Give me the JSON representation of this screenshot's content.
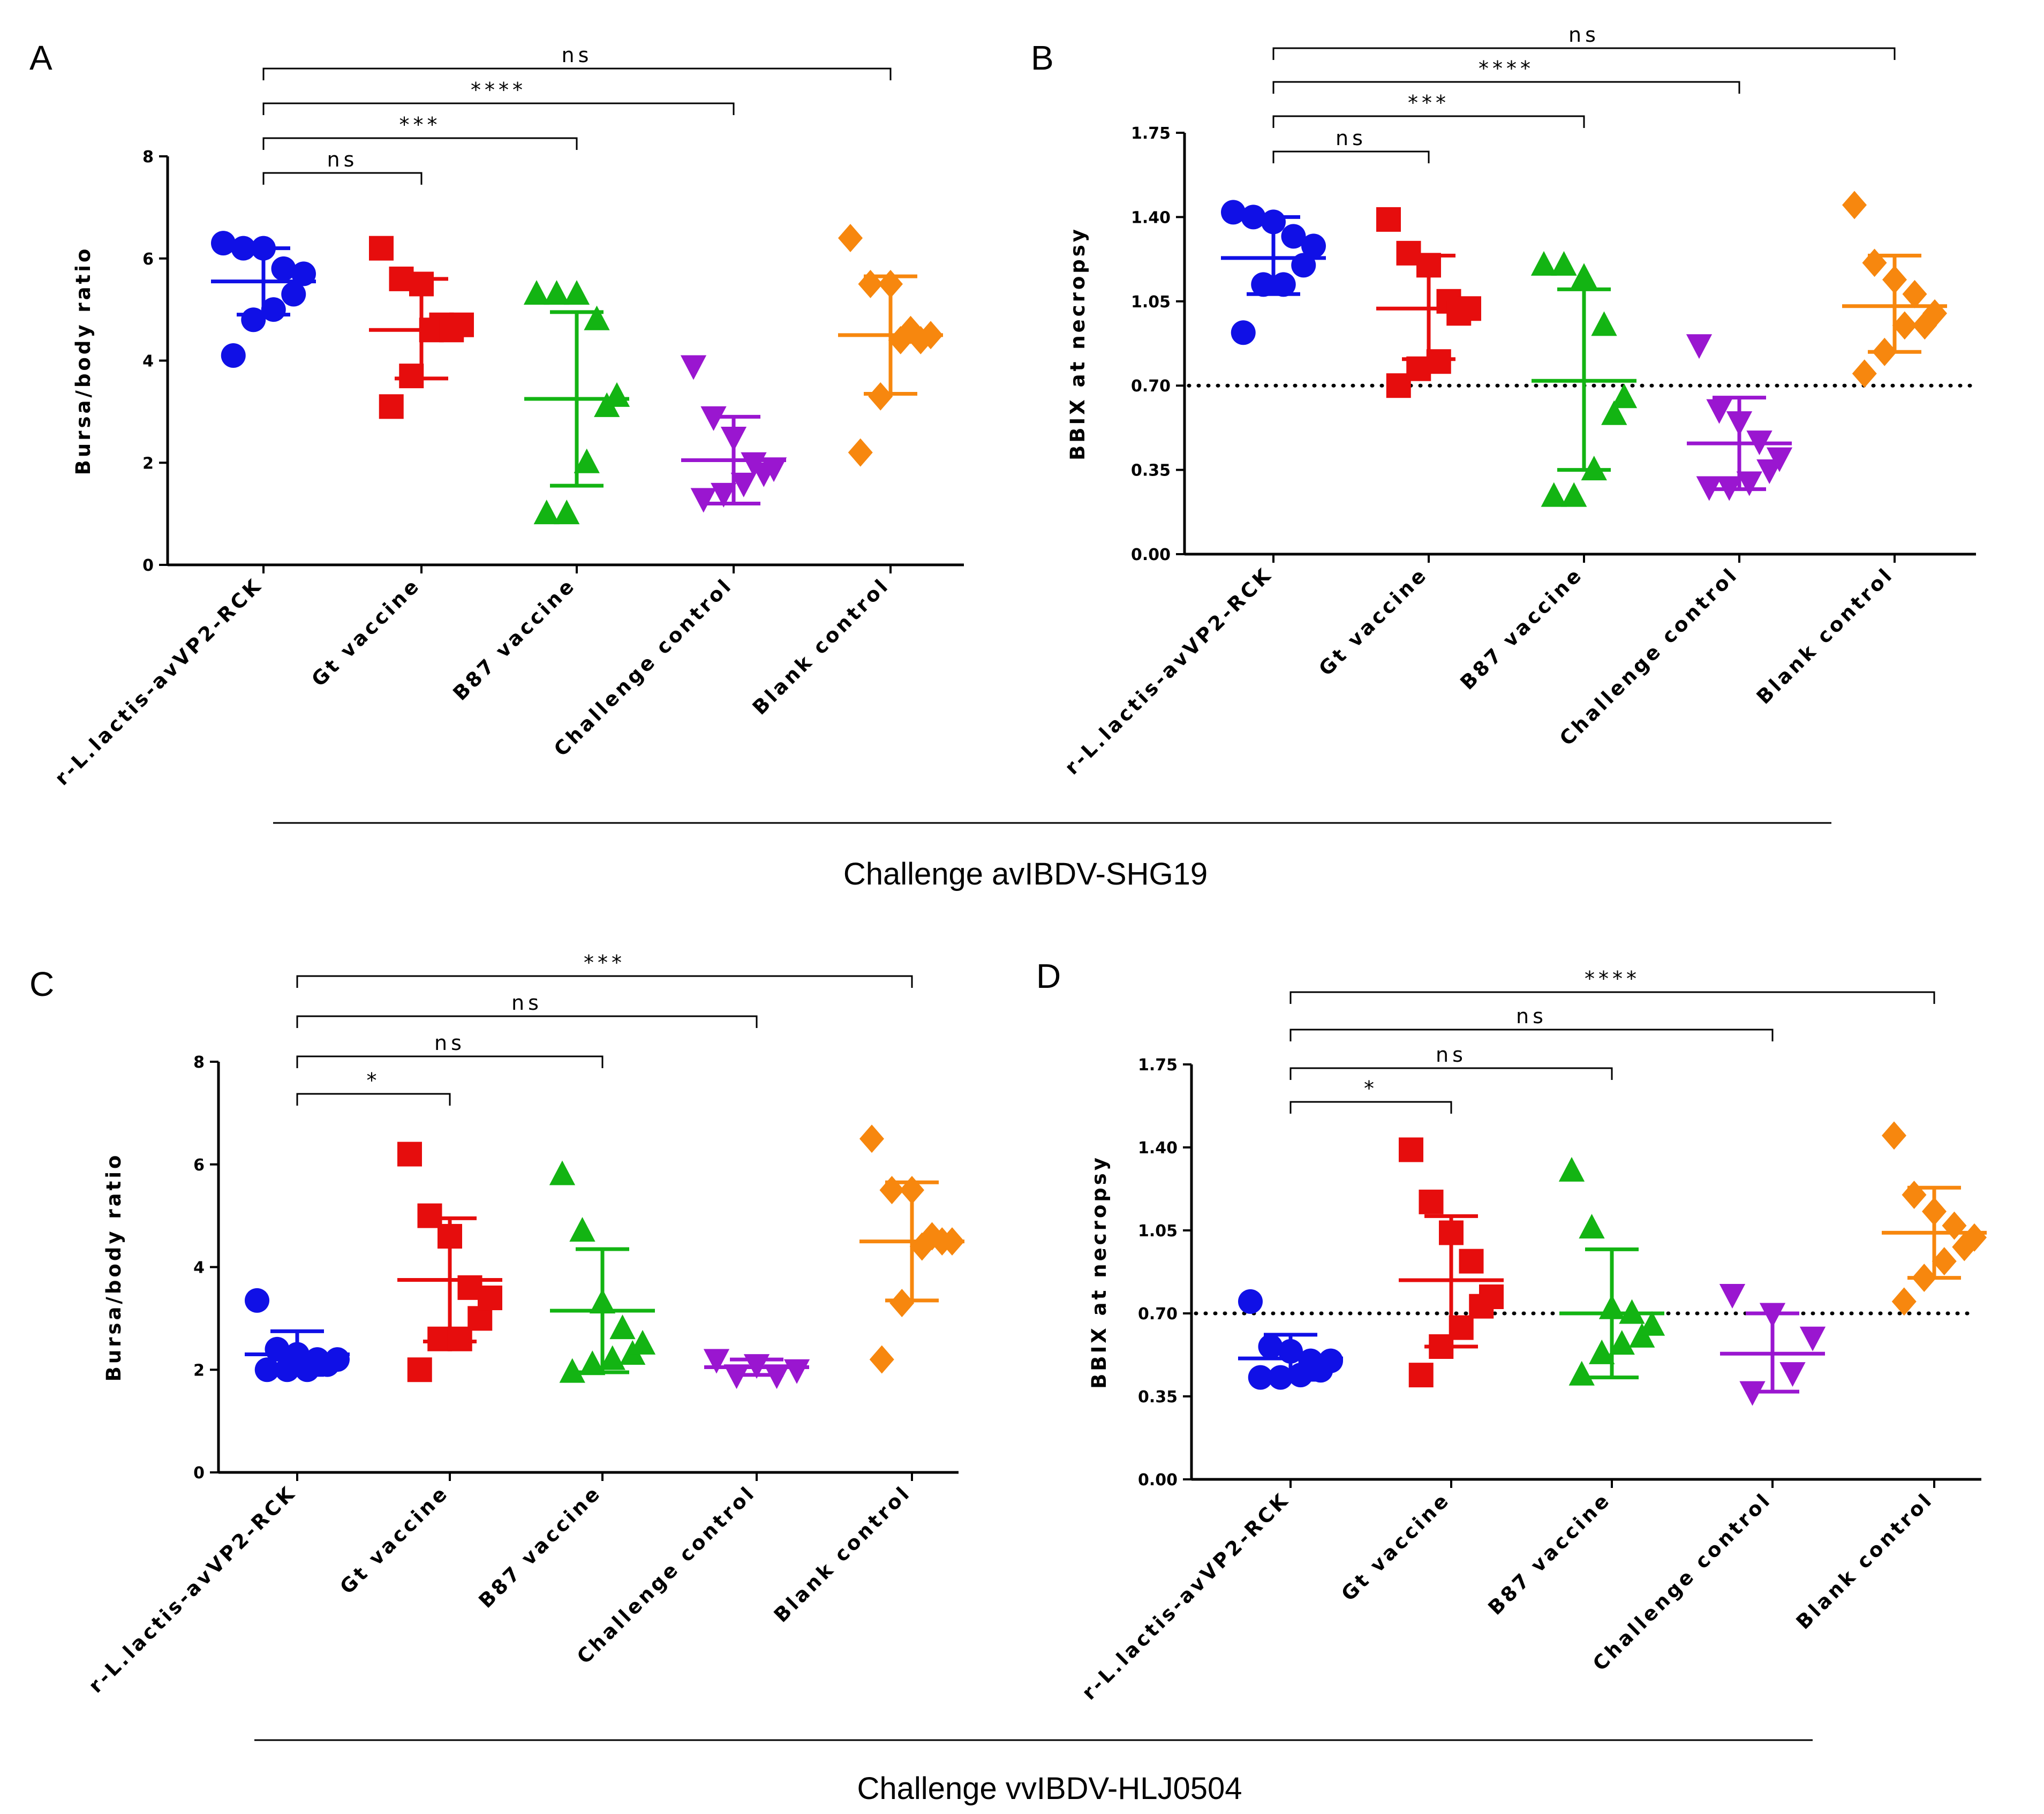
{
  "figure": {
    "challenge_labels": [
      "Challenge avIBDV-SHG19",
      "Challenge vvIBDV-HLJ0504"
    ]
  },
  "chart_data": [
    {
      "panel": "A",
      "type": "scatter",
      "ylabel": "Bursa/body ratio",
      "ylim": [
        0,
        8
      ],
      "yticks": [
        "0",
        "2",
        "4",
        "6",
        "8"
      ],
      "categories": [
        "r-L.lactis-avVP2-RCK",
        "Gt vaccine",
        "B87 vaccine",
        "Challenge control",
        "Blank control"
      ],
      "reference_line": null,
      "groups": [
        {
          "name": "r-L.lactis-avVP2-RCK",
          "color": "#1010e6",
          "marker": "circle",
          "mean": 5.55,
          "sd_low": 4.9,
          "sd_high": 6.2,
          "points": [
            6.3,
            6.2,
            6.2,
            5.8,
            5.7,
            5.3,
            5.0,
            4.8,
            4.1
          ]
        },
        {
          "name": "Gt vaccine",
          "color": "#e60d0d",
          "marker": "square",
          "mean": 4.6,
          "sd_low": 3.65,
          "sd_high": 5.6,
          "points": [
            6.2,
            5.6,
            5.5,
            4.7,
            4.7,
            4.6,
            4.6,
            3.7,
            3.1
          ]
        },
        {
          "name": "B87 vaccine",
          "color": "#13b413",
          "marker": "triangle-up",
          "mean": 3.25,
          "sd_low": 1.55,
          "sd_high": 4.95,
          "points": [
            5.3,
            5.3,
            5.3,
            4.8,
            3.3,
            3.1,
            2.0,
            1.0,
            1.0
          ]
        },
        {
          "name": "Challenge control",
          "color": "#9a16d0",
          "marker": "triangle-down",
          "mean": 2.05,
          "sd_low": 1.2,
          "sd_high": 2.9,
          "points": [
            3.9,
            2.9,
            2.5,
            2.0,
            1.9,
            1.8,
            1.6,
            1.4,
            1.3
          ]
        },
        {
          "name": "Blank control",
          "color": "#f7870e",
          "marker": "diamond",
          "mean": 4.5,
          "sd_low": 3.35,
          "sd_high": 5.65,
          "points": [
            6.4,
            5.5,
            5.5,
            4.6,
            4.5,
            4.4,
            4.4,
            3.3,
            2.2
          ]
        }
      ],
      "comparisons": [
        {
          "from": 0,
          "to": 1,
          "label": "ns"
        },
        {
          "from": 0,
          "to": 2,
          "label": "***"
        },
        {
          "from": 0,
          "to": 3,
          "label": "****"
        },
        {
          "from": 0,
          "to": 4,
          "label": "ns"
        }
      ]
    },
    {
      "panel": "B",
      "type": "scatter",
      "ylabel": "BBIX at necropsy",
      "ylim": [
        0,
        1.75
      ],
      "yticks": [
        "0.00",
        "0.35",
        "0.70",
        "1.05",
        "1.40",
        "1.75"
      ],
      "categories": [
        "r-L.lactis-avVP2-RCK",
        "Gt vaccine",
        "B87 vaccine",
        "Challenge control",
        "Blank control"
      ],
      "reference_line": 0.7,
      "groups": [
        {
          "name": "r-L.lactis-avVP2-RCK",
          "color": "#1010e6",
          "marker": "circle",
          "mean": 1.23,
          "sd_low": 1.08,
          "sd_high": 1.4,
          "points": [
            1.42,
            1.4,
            1.38,
            1.32,
            1.28,
            1.2,
            1.12,
            1.12,
            0.92
          ]
        },
        {
          "name": "Gt vaccine",
          "color": "#e60d0d",
          "marker": "square",
          "mean": 1.02,
          "sd_low": 0.81,
          "sd_high": 1.24,
          "points": [
            1.39,
            1.25,
            1.2,
            1.05,
            1.02,
            1.0,
            0.8,
            0.77,
            0.7
          ]
        },
        {
          "name": "B87 vaccine",
          "color": "#13b413",
          "marker": "triangle-up",
          "mean": 0.72,
          "sd_low": 0.35,
          "sd_high": 1.1,
          "points": [
            1.2,
            1.2,
            1.15,
            0.95,
            0.65,
            0.58,
            0.35,
            0.24,
            0.24
          ]
        },
        {
          "name": "Challenge control",
          "color": "#9a16d0",
          "marker": "triangle-down",
          "mean": 0.46,
          "sd_low": 0.27,
          "sd_high": 0.65,
          "points": [
            0.87,
            0.6,
            0.55,
            0.47,
            0.4,
            0.35,
            0.3,
            0.28,
            0.28
          ]
        },
        {
          "name": "Blank control",
          "color": "#f7870e",
          "marker": "diamond",
          "mean": 1.03,
          "sd_low": 0.84,
          "sd_high": 1.24,
          "points": [
            1.45,
            1.21,
            1.14,
            1.08,
            1.0,
            0.95,
            0.95,
            0.84,
            0.75
          ]
        }
      ],
      "comparisons": [
        {
          "from": 0,
          "to": 1,
          "label": "ns"
        },
        {
          "from": 0,
          "to": 2,
          "label": "***"
        },
        {
          "from": 0,
          "to": 3,
          "label": "****"
        },
        {
          "from": 0,
          "to": 4,
          "label": "ns"
        }
      ]
    },
    {
      "panel": "C",
      "type": "scatter",
      "ylabel": "Bursa/body ratio",
      "ylim": [
        0,
        8
      ],
      "yticks": [
        "0",
        "2",
        "4",
        "6",
        "8"
      ],
      "categories": [
        "r-L.lactis-avVP2-RCK",
        "Gt vaccine",
        "B87 vaccine",
        "Challenge control",
        "Blank control"
      ],
      "reference_line": null,
      "groups": [
        {
          "name": "r-L.lactis-avVP2-RCK",
          "color": "#1010e6",
          "marker": "circle",
          "mean": 2.3,
          "sd_low": 1.9,
          "sd_high": 2.75,
          "points": [
            3.35,
            2.4,
            2.3,
            2.2,
            2.2,
            2.1,
            2.0,
            2.0,
            2.0
          ]
        },
        {
          "name": "Gt vaccine",
          "color": "#e60d0d",
          "marker": "square",
          "mean": 3.75,
          "sd_low": 2.55,
          "sd_high": 4.95,
          "points": [
            6.2,
            5.0,
            4.6,
            3.6,
            3.4,
            3.0,
            2.6,
            2.6,
            2.0
          ]
        },
        {
          "name": "B87 vaccine",
          "color": "#13b413",
          "marker": "triangle-up",
          "mean": 3.15,
          "sd_low": 1.95,
          "sd_high": 4.35,
          "points": [
            5.8,
            4.7,
            3.3,
            2.8,
            2.5,
            2.3,
            2.2,
            2.1,
            1.95
          ]
        },
        {
          "name": "Challenge control",
          "color": "#9a16d0",
          "marker": "triangle-down",
          "mean": 2.05,
          "sd_low": 1.9,
          "sd_high": 2.2,
          "points": [
            2.2,
            2.1,
            2.0,
            1.9,
            1.9
          ]
        },
        {
          "name": "Blank control",
          "color": "#f7870e",
          "marker": "diamond",
          "mean": 4.5,
          "sd_low": 3.35,
          "sd_high": 5.65,
          "points": [
            6.5,
            5.5,
            5.5,
            4.6,
            4.5,
            4.5,
            4.4,
            3.3,
            2.2
          ]
        }
      ],
      "comparisons": [
        {
          "from": 0,
          "to": 1,
          "label": "*"
        },
        {
          "from": 0,
          "to": 2,
          "label": "ns"
        },
        {
          "from": 0,
          "to": 3,
          "label": "ns"
        },
        {
          "from": 0,
          "to": 4,
          "label": "***"
        }
      ]
    },
    {
      "panel": "D",
      "type": "scatter",
      "ylabel": "BBIX at necropsy",
      "ylim": [
        0,
        1.75
      ],
      "yticks": [
        "0.00",
        "0.35",
        "0.70",
        "1.05",
        "1.40",
        "1.75"
      ],
      "categories": [
        "r-L.lactis-avVP2-RCK",
        "Gt vaccine",
        "B87 vaccine",
        "Challenge control",
        "Blank control"
      ],
      "reference_line": 0.7,
      "groups": [
        {
          "name": "r-L.lactis-avVP2-RCK",
          "color": "#1010e6",
          "marker": "circle",
          "mean": 0.51,
          "sd_low": 0.42,
          "sd_high": 0.61,
          "points": [
            0.75,
            0.56,
            0.54,
            0.5,
            0.5,
            0.46,
            0.44,
            0.43,
            0.43
          ]
        },
        {
          "name": "Gt vaccine",
          "color": "#e60d0d",
          "marker": "square",
          "mean": 0.84,
          "sd_low": 0.56,
          "sd_high": 1.11,
          "points": [
            1.39,
            1.17,
            1.04,
            0.92,
            0.77,
            0.73,
            0.64,
            0.56,
            0.44
          ]
        },
        {
          "name": "B87 vaccine",
          "color": "#13b413",
          "marker": "triangle-up",
          "mean": 0.7,
          "sd_low": 0.43,
          "sd_high": 0.97,
          "points": [
            1.3,
            1.06,
            0.72,
            0.7,
            0.65,
            0.6,
            0.57,
            0.53,
            0.44
          ]
        },
        {
          "name": "Challenge control",
          "color": "#9a16d0",
          "marker": "triangle-down",
          "mean": 0.53,
          "sd_low": 0.37,
          "sd_high": 0.7,
          "points": [
            0.78,
            0.7,
            0.6,
            0.45,
            0.37
          ]
        },
        {
          "name": "Blank control",
          "color": "#f7870e",
          "marker": "diamond",
          "mean": 1.04,
          "sd_low": 0.85,
          "sd_high": 1.23,
          "points": [
            1.45,
            1.2,
            1.13,
            1.07,
            1.02,
            0.98,
            0.92,
            0.85,
            0.75
          ]
        }
      ],
      "comparisons": [
        {
          "from": 0,
          "to": 1,
          "label": "*"
        },
        {
          "from": 0,
          "to": 2,
          "label": "ns"
        },
        {
          "from": 0,
          "to": 3,
          "label": "ns"
        },
        {
          "from": 0,
          "to": 4,
          "label": "****"
        }
      ]
    }
  ]
}
